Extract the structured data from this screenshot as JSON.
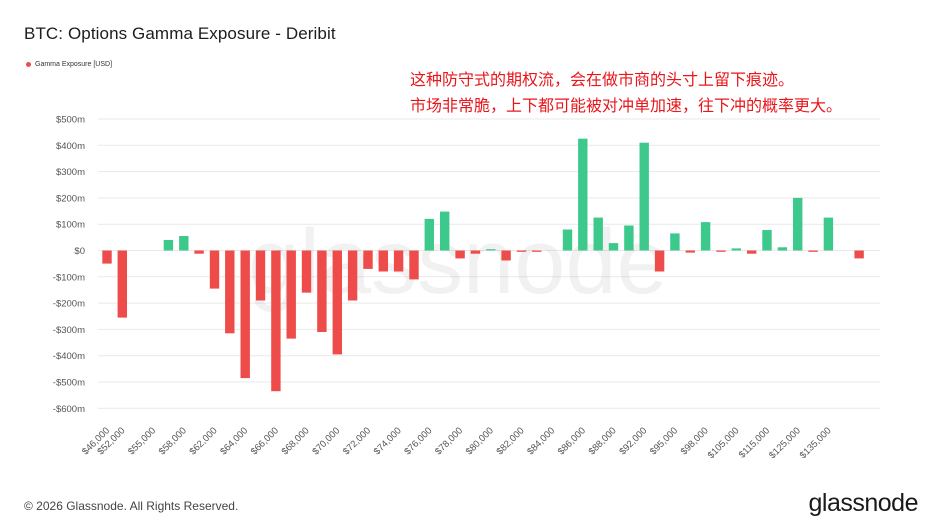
{
  "header": {
    "title": "BTC: Options Gamma Exposure - Deribit"
  },
  "legend": {
    "label": "Gamma Exposure [USD]"
  },
  "annotation": {
    "line1": "这种防守式的期权流，会在做市商的头寸上留下痕迹。",
    "line2": "市场非常脆，上下都可能被对冲单加速，往下冲的概率更大。"
  },
  "watermark": "glassnode",
  "footer": {
    "copyright": "© 2026 Glassnode. All Rights Reserved.",
    "brand": "glassnode"
  },
  "colors": {
    "negative": "#ee4b4b",
    "positive": "#3cc98b",
    "annotation": "#e8161b",
    "grid": "#e9e9e9"
  },
  "chart_data": {
    "type": "bar",
    "title": "BTC: Options Gamma Exposure - Deribit",
    "xlabel": "",
    "ylabel": "",
    "ylim": [
      -600,
      500
    ],
    "y_unit": "million USD",
    "y_tick_labels": [
      "$500m",
      "$400m",
      "$300m",
      "$200m",
      "$100m",
      "$0",
      "-$100m",
      "-$200m",
      "-$300m",
      "-$400m",
      "-$500m",
      "-$600m"
    ],
    "y_ticks": [
      500,
      400,
      300,
      200,
      100,
      0,
      -100,
      -200,
      -300,
      -400,
      -500,
      -600
    ],
    "x_tick_labels": [
      "$46,000",
      "$52,000",
      "$55,000",
      "$58,000",
      "$62,000",
      "$64,000",
      "$66,000",
      "$68,000",
      "$70,000",
      "$72,000",
      "$74,000",
      "$76,000",
      "$78,000",
      "$80,000",
      "$82,000",
      "$84,000",
      "$86,000",
      "$88,000",
      "$92,000",
      "$95,000",
      "$98,000",
      "$105,000",
      "$115,000",
      "$125,000",
      "$135,000"
    ],
    "x_tick_slots": [
      0,
      1,
      3,
      5,
      7,
      9,
      11,
      13,
      15,
      17,
      19,
      21,
      23,
      25,
      27,
      29,
      31,
      33,
      35,
      37,
      39,
      41,
      43,
      45,
      47
    ],
    "grid": true,
    "legend_position": "top-left",
    "series": [
      {
        "name": "Gamma Exposure [USD]",
        "values": [
          -50,
          -255,
          null,
          null,
          40,
          55,
          -12,
          -145,
          -315,
          -485,
          -190,
          -535,
          -335,
          -160,
          -310,
          -395,
          -190,
          -70,
          -80,
          -80,
          -110,
          120,
          148,
          -30,
          -12,
          5,
          -38,
          -5,
          -5,
          null,
          80,
          425,
          125,
          28,
          95,
          410,
          -80,
          65,
          -8,
          108,
          -5,
          8,
          -12,
          78,
          12,
          200,
          -5,
          125,
          null,
          -30
        ]
      }
    ]
  }
}
